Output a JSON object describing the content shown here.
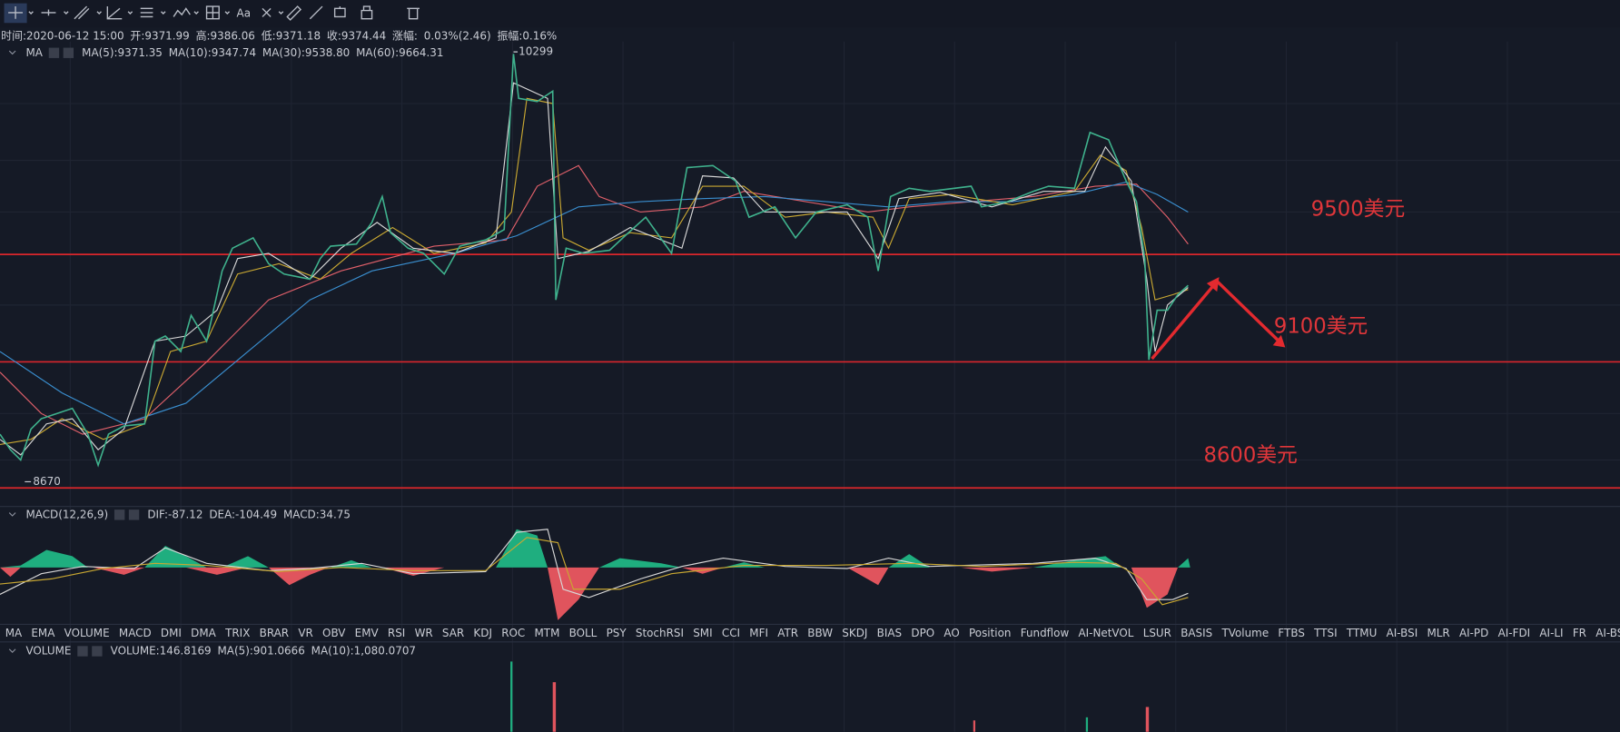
{
  "toolbar": {
    "text_tool": "Aa"
  },
  "info_bar": [
    "时间:2020-06-12 15:00",
    "开:9371.99",
    "高:9386.06",
    "低:9371.18",
    "收:9374.44",
    "涨幅:",
    "0.03%(2.46)",
    "振幅:0.16%"
  ],
  "ma_legend": [
    "MA",
    "MA(5):9371.35",
    "MA(10):9347.74",
    "MA(30):9538.80",
    "MA(60):9664.31"
  ],
  "price_markers": {
    "high": "10299",
    "low": "8670"
  },
  "annotations": [
    "9500美元",
    "9100美元",
    "8600美元"
  ],
  "macd_legend": [
    "MACD(12,26,9)",
    "DIF:-87.12",
    "DEA:-104.49",
    "MACD:34.75"
  ],
  "indicator_tabs": [
    "MA",
    "EMA",
    "VOLUME",
    "MACD",
    "DMI",
    "DMA",
    "TRIX",
    "BRAR",
    "VR",
    "OBV",
    "EMV",
    "RSI",
    "WR",
    "SAR",
    "KDJ",
    "ROC",
    "MTM",
    "BOLL",
    "PSY",
    "StochRSI",
    "SMI",
    "CCI",
    "MFI",
    "ATR",
    "BBW",
    "SKDJ",
    "BIAS",
    "DPO",
    "AO",
    "Position",
    "Fundflow",
    "AI-NetVOL",
    "LSUR",
    "BASIS",
    "TVolume",
    "FTBS",
    "TTSI",
    "TTMU",
    "AI-BSI",
    "MLR",
    "AI-PD",
    "AI-FDI",
    "AI-LI",
    "FR",
    "AI-BST"
  ],
  "volume_legend": [
    "VOLUME",
    "VOLUME:146.8169",
    "MA(5):901.0666",
    "MA(10):1,080.0707"
  ]
}
